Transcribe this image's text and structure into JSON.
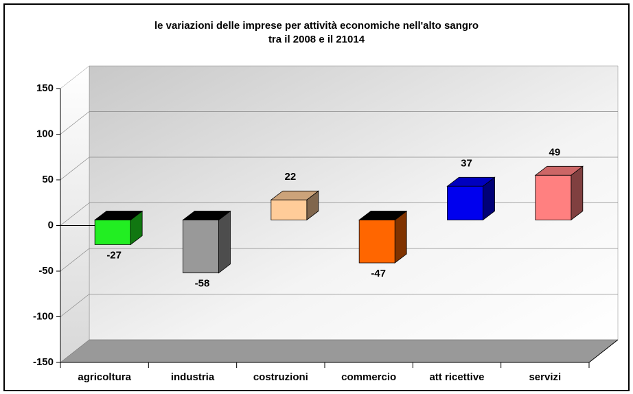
{
  "chart_data": {
    "type": "bar3d",
    "title": [
      "le variazioni delle imprese per attività economiche nell'alto sangro",
      "tra il 2008 e il 21014"
    ],
    "categories": [
      "agricoltura",
      "industria",
      "costruzioni",
      "commercio",
      "att ricettive",
      "servizi"
    ],
    "values": [
      -27,
      -58,
      22,
      -47,
      37,
      49
    ],
    "colors": [
      "#22ee22",
      "#999999",
      "#ffcc99",
      "#ff6600",
      "#0000ee",
      "#ff8080"
    ],
    "ylim": [
      -150,
      150
    ],
    "yticks": [
      -150,
      -100,
      -50,
      0,
      50,
      100,
      150
    ],
    "grid": true
  }
}
